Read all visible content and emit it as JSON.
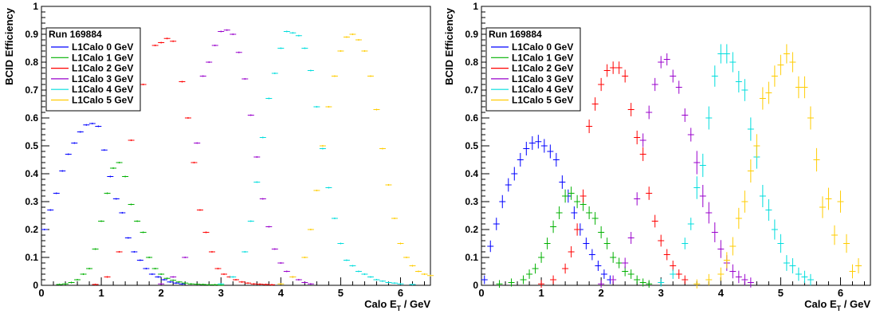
{
  "chart_data": [
    {
      "type": "scatter",
      "xlabel": "Calo E_T / GeV",
      "ylabel": "BCID Efficiency",
      "xlim": [
        0,
        6.5
      ],
      "ylim": [
        0,
        1
      ],
      "xticks": [
        "0",
        "1",
        "2",
        "3",
        "4",
        "5",
        "6"
      ],
      "yticks": [
        "0",
        "0.1",
        "0.2",
        "0.3",
        "0.4",
        "0.5",
        "0.6",
        "0.7",
        "0.8",
        "0.9",
        "1"
      ],
      "legend_title": "Run 169884",
      "legend_placement": "top-left",
      "grid": false,
      "series": [
        {
          "name": "L1Calo 0 GeV",
          "color": "#0000ff",
          "x": [
            0.05,
            0.15,
            0.25,
            0.35,
            0.45,
            0.55,
            0.65,
            0.75,
            0.85,
            0.95,
            1.05,
            1.15,
            1.25,
            1.35,
            1.45,
            1.55,
            1.65,
            1.75,
            1.85,
            1.95,
            2.05,
            2.15,
            2.25,
            2.35
          ],
          "y": [
            0.2,
            0.27,
            0.33,
            0.41,
            0.47,
            0.51,
            0.55,
            0.575,
            0.58,
            0.57,
            0.485,
            0.39,
            0.31,
            0.26,
            0.17,
            0.12,
            0.09,
            0.06,
            0.04,
            0.03,
            0.02,
            0.012,
            0.008,
            0.005
          ]
        },
        {
          "name": "L1Calo 1 GeV",
          "color": "#00b000",
          "x": [
            0.3,
            0.4,
            0.5,
            0.6,
            0.7,
            0.8,
            0.9,
            1.0,
            1.1,
            1.2,
            1.3,
            1.4,
            1.5,
            1.6,
            1.7,
            1.8,
            1.9,
            2.0,
            2.1,
            2.2,
            2.3,
            2.4,
            2.5,
            2.6,
            2.7,
            2.8,
            2.9,
            3.0
          ],
          "y": [
            0.003,
            0.005,
            0.01,
            0.02,
            0.04,
            0.06,
            0.13,
            0.23,
            0.33,
            0.42,
            0.44,
            0.39,
            0.29,
            0.23,
            0.19,
            0.1,
            0.06,
            0.04,
            0.025,
            0.018,
            0.012,
            0.008,
            0.005,
            0.004,
            0.003,
            0.002,
            0.002,
            0.001
          ]
        },
        {
          "name": "L1Calo 2 GeV",
          "color": "#ff0000",
          "x": [
            0.9,
            1.1,
            1.3,
            1.5,
            1.7,
            1.9,
            2.0,
            2.1,
            2.2,
            2.35,
            2.45,
            2.55,
            2.65,
            2.75,
            2.85,
            2.95,
            3.05,
            3.15,
            3.25,
            3.35,
            3.45,
            3.55,
            3.65,
            3.75,
            3.85
          ],
          "y": [
            0.003,
            0.03,
            0.12,
            0.52,
            0.72,
            0.86,
            0.87,
            0.885,
            0.875,
            0.73,
            0.6,
            0.44,
            0.27,
            0.19,
            0.12,
            0.06,
            0.04,
            0.03,
            0.02,
            0.012,
            0.008,
            0.005,
            0.004,
            0.003,
            0.002
          ]
        },
        {
          "name": "L1Calo 3 GeV",
          "color": "#9900cc",
          "x": [
            2.0,
            2.2,
            2.4,
            2.6,
            2.7,
            2.8,
            2.9,
            3.0,
            3.1,
            3.2,
            3.3,
            3.4,
            3.5,
            3.6,
            3.7,
            3.8,
            3.9,
            4.0,
            4.1,
            4.2,
            4.3,
            4.4,
            4.5
          ],
          "y": [
            0.005,
            0.03,
            0.1,
            0.51,
            0.75,
            0.8,
            0.86,
            0.91,
            0.915,
            0.9,
            0.835,
            0.74,
            0.61,
            0.46,
            0.31,
            0.21,
            0.13,
            0.08,
            0.05,
            0.03,
            0.02,
            0.01,
            0.005
          ]
        },
        {
          "name": "L1Calo 4 GeV",
          "color": "#00dddd",
          "x": [
            3.0,
            3.2,
            3.4,
            3.5,
            3.6,
            3.7,
            3.8,
            3.9,
            4.0,
            4.1,
            4.2,
            4.3,
            4.4,
            4.5,
            4.6,
            4.7,
            4.8,
            4.9,
            5.0,
            5.1,
            5.2,
            5.3,
            5.4,
            5.5,
            5.6,
            5.7,
            5.8,
            5.9,
            6.0,
            6.2
          ],
          "y": [
            0.005,
            0.03,
            0.12,
            0.23,
            0.37,
            0.53,
            0.67,
            0.76,
            0.85,
            0.91,
            0.905,
            0.895,
            0.85,
            0.77,
            0.64,
            0.49,
            0.35,
            0.24,
            0.15,
            0.09,
            0.07,
            0.05,
            0.04,
            0.03,
            0.02,
            0.015,
            0.01,
            0.008,
            0.005,
            0.003
          ]
        },
        {
          "name": "L1Calo 5 GeV",
          "color": "#ffcc00",
          "x": [
            4.0,
            4.2,
            4.4,
            4.5,
            4.6,
            4.7,
            4.8,
            4.9,
            5.0,
            5.1,
            5.2,
            5.3,
            5.4,
            5.5,
            5.6,
            5.7,
            5.8,
            5.9,
            6.0,
            6.1,
            6.2,
            6.3,
            6.4,
            6.5
          ],
          "y": [
            0.005,
            0.03,
            0.1,
            0.2,
            0.34,
            0.5,
            0.64,
            0.75,
            0.84,
            0.89,
            0.9,
            0.88,
            0.84,
            0.75,
            0.63,
            0.49,
            0.36,
            0.24,
            0.15,
            0.1,
            0.07,
            0.05,
            0.04,
            0.035
          ]
        }
      ]
    },
    {
      "type": "scatter",
      "xlabel": "Calo E_T / GeV",
      "ylabel": "BCID Efficiency",
      "xlim": [
        0,
        6.5
      ],
      "ylim": [
        0,
        1
      ],
      "xticks": [
        "0",
        "1",
        "2",
        "3",
        "4",
        "5",
        "6"
      ],
      "yticks": [
        "0",
        "0.1",
        "0.2",
        "0.3",
        "0.4",
        "0.5",
        "0.6",
        "0.7",
        "0.8",
        "0.9",
        "1"
      ],
      "legend_title": "Run 169884",
      "legend_placement": "top-left",
      "grid": false,
      "series": [
        {
          "name": "L1Calo 0 GeV",
          "color": "#0000ff",
          "x": [
            0.05,
            0.15,
            0.25,
            0.35,
            0.45,
            0.55,
            0.65,
            0.75,
            0.85,
            0.95,
            1.05,
            1.15,
            1.25,
            1.35,
            1.45,
            1.55,
            1.65,
            1.75,
            1.85,
            1.95,
            2.05,
            2.15
          ],
          "y": [
            0.02,
            0.14,
            0.22,
            0.3,
            0.36,
            0.4,
            0.45,
            0.49,
            0.51,
            0.515,
            0.5,
            0.48,
            0.45,
            0.37,
            0.32,
            0.26,
            0.2,
            0.15,
            0.11,
            0.07,
            0.04,
            0.02
          ]
        },
        {
          "name": "L1Calo 1 GeV",
          "color": "#00b000",
          "x": [
            0.3,
            0.5,
            0.7,
            0.8,
            0.9,
            1.0,
            1.1,
            1.2,
            1.3,
            1.4,
            1.5,
            1.6,
            1.7,
            1.8,
            1.9,
            2.0,
            2.1,
            2.2,
            2.3,
            2.4,
            2.5,
            2.6,
            2.7,
            2.8
          ],
          "y": [
            0.005,
            0.01,
            0.02,
            0.04,
            0.06,
            0.1,
            0.15,
            0.21,
            0.26,
            0.32,
            0.33,
            0.3,
            0.29,
            0.26,
            0.24,
            0.19,
            0.15,
            0.1,
            0.08,
            0.05,
            0.04,
            0.02,
            0.01,
            0.005
          ]
        },
        {
          "name": "L1Calo 2 GeV",
          "color": "#ff0000",
          "x": [
            1.0,
            1.2,
            1.4,
            1.5,
            1.6,
            1.7,
            1.8,
            1.9,
            2.0,
            2.1,
            2.2,
            2.3,
            2.4,
            2.5,
            2.6,
            2.7,
            2.8,
            2.9,
            3.0,
            3.1,
            3.2,
            3.3,
            3.4
          ],
          "y": [
            0.005,
            0.02,
            0.06,
            0.12,
            0.2,
            0.32,
            0.57,
            0.65,
            0.72,
            0.77,
            0.78,
            0.78,
            0.75,
            0.63,
            0.53,
            0.47,
            0.33,
            0.23,
            0.16,
            0.11,
            0.07,
            0.04,
            0.02
          ]
        },
        {
          "name": "L1Calo 3 GeV",
          "color": "#9900cc",
          "x": [
            2.0,
            2.2,
            2.4,
            2.5,
            2.6,
            2.7,
            2.8,
            2.9,
            3.0,
            3.1,
            3.2,
            3.3,
            3.4,
            3.5,
            3.6,
            3.7,
            3.8,
            3.9,
            4.0,
            4.1,
            4.2,
            4.3,
            4.4,
            4.5
          ],
          "y": [
            0.005,
            0.02,
            0.08,
            0.17,
            0.31,
            0.52,
            0.62,
            0.72,
            0.8,
            0.81,
            0.75,
            0.71,
            0.61,
            0.54,
            0.44,
            0.32,
            0.26,
            0.19,
            0.13,
            0.08,
            0.05,
            0.03,
            0.02,
            0.01
          ]
        },
        {
          "name": "L1Calo 4 GeV",
          "color": "#00dddd",
          "x": [
            3.0,
            3.2,
            3.4,
            3.5,
            3.6,
            3.7,
            3.8,
            3.9,
            4.0,
            4.1,
            4.2,
            4.3,
            4.4,
            4.5,
            4.6,
            4.7,
            4.8,
            4.9,
            5.0,
            5.1,
            5.2,
            5.3,
            5.4,
            5.5
          ],
          "y": [
            0.01,
            0.04,
            0.15,
            0.22,
            0.35,
            0.43,
            0.6,
            0.75,
            0.83,
            0.83,
            0.8,
            0.73,
            0.7,
            0.56,
            0.46,
            0.32,
            0.27,
            0.2,
            0.15,
            0.08,
            0.07,
            0.04,
            0.03,
            0.02
          ]
        },
        {
          "name": "L1Calo 5 GeV",
          "color": "#ffcc00",
          "x": [
            3.6,
            3.8,
            4.0,
            4.1,
            4.2,
            4.3,
            4.4,
            4.5,
            4.6,
            4.7,
            4.8,
            4.9,
            5.0,
            5.1,
            5.2,
            5.3,
            5.4,
            5.5,
            5.6,
            5.7,
            5.8,
            5.9,
            6.0,
            6.1,
            6.2,
            6.3
          ],
          "y": [
            0.005,
            0.02,
            0.04,
            0.09,
            0.14,
            0.24,
            0.3,
            0.41,
            0.5,
            0.67,
            0.69,
            0.75,
            0.79,
            0.83,
            0.8,
            0.71,
            0.71,
            0.6,
            0.45,
            0.28,
            0.31,
            0.18,
            0.3,
            0.15,
            0.05,
            0.07
          ]
        }
      ]
    }
  ]
}
